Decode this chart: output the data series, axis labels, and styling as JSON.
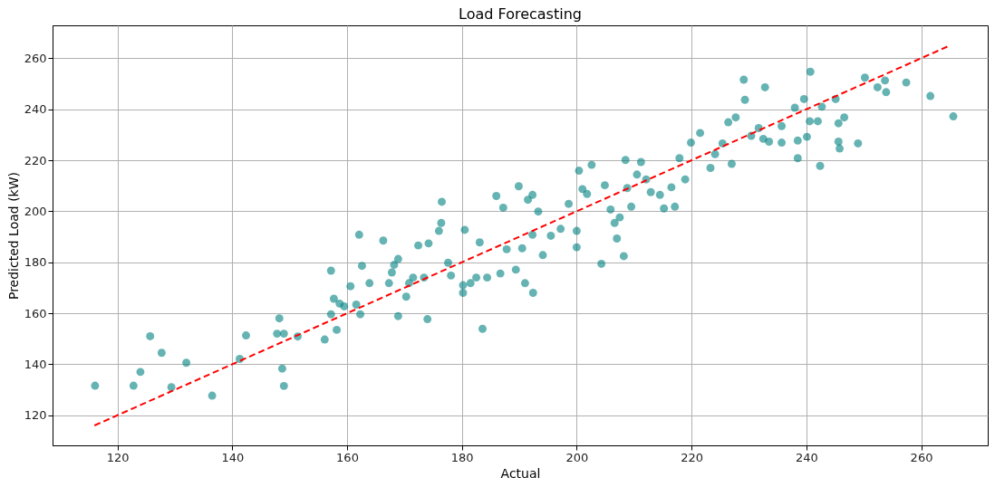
{
  "chart_data": {
    "type": "scatter",
    "title": "Load Forecasting",
    "xlabel": "Actual",
    "ylabel": "Predicted Load (kW)",
    "xlim": [
      108.7,
      271.6
    ],
    "ylim": [
      108.2,
      272.9
    ],
    "xticks": [
      120,
      140,
      160,
      180,
      200,
      220,
      240,
      260
    ],
    "yticks": [
      120,
      140,
      160,
      180,
      200,
      220,
      240,
      260
    ],
    "grid": true,
    "series": [
      {
        "type": "scatter",
        "color": "#008080",
        "marker": "circle",
        "x": [
          116.1,
          122.8,
          124.0,
          125.7,
          127.7,
          129.4,
          132.0,
          136.5,
          141.3,
          142.4,
          148.2,
          147.8,
          149.0,
          148.7,
          149.0,
          151.4,
          156.1,
          157.2,
          157.7,
          157.2,
          158.2,
          158.7,
          159.5,
          160.6,
          161.6,
          162.1,
          162.6,
          162.3,
          163.9,
          166.3,
          167.3,
          167.8,
          168.2,
          168.9,
          168.9,
          170.3,
          170.8,
          171.5,
          172.4,
          174.2,
          174.0,
          173.4,
          176.0,
          176.4,
          176.5,
          177.6,
          178.1,
          180.2,
          180.2,
          180.5,
          181.5,
          182.5,
          183.1,
          183.6,
          184.4,
          186.0,
          187.2,
          186.7,
          187.8,
          189.4,
          189.9,
          190.5,
          191.0,
          191.5,
          192.3,
          192.3,
          192.4,
          193.3,
          194.1,
          195.5,
          197.2,
          198.6,
          200.0,
          200.0,
          200.4,
          201.0,
          201.8,
          202.6,
          204.3,
          204.9,
          205.9,
          206.6,
          207.0,
          207.5,
          208.2,
          208.5,
          208.8,
          209.5,
          210.5,
          211.2,
          212.1,
          212.9,
          214.5,
          215.2,
          216.5,
          217.1,
          217.9,
          218.9,
          219.9,
          221.5,
          223.3,
          224.1,
          225.4,
          226.4,
          227.0,
          227.7,
          229.1,
          229.3,
          230.4,
          231.7,
          232.5,
          232.8,
          233.5,
          235.7,
          235.7,
          238.0,
          238.5,
          238.5,
          239.6,
          240.1,
          240.7,
          240.6,
          242.0,
          242.4,
          242.7,
          245.1,
          245.6,
          245.6,
          245.8,
          246.6,
          249.0,
          250.2,
          252.4,
          253.7,
          253.9,
          257.4,
          261.6,
          265.6
        ],
        "values": [
          131.6,
          131.6,
          137.0,
          151.0,
          144.5,
          131.0,
          140.6,
          127.7,
          142.1,
          151.3,
          158.0,
          152.0,
          152.0,
          138.3,
          131.5,
          150.9,
          149.7,
          176.7,
          165.7,
          159.6,
          153.5,
          163.8,
          162.7,
          170.6,
          163.4,
          190.8,
          178.6,
          159.6,
          171.8,
          188.5,
          171.8,
          176.0,
          179.0,
          181.3,
          158.9,
          166.5,
          171.8,
          174.0,
          186.6,
          187.4,
          157.7,
          174.0,
          192.3,
          195.4,
          203.7,
          179.8,
          174.8,
          171.0,
          168.0,
          192.7,
          171.8,
          174.0,
          187.8,
          153.9,
          174.0,
          206.0,
          201.4,
          175.6,
          185.1,
          177.1,
          209.8,
          185.5,
          171.8,
          204.5,
          206.4,
          190.8,
          168.0,
          199.9,
          182.8,
          190.4,
          193.1,
          202.9,
          192.3,
          185.9,
          215.9,
          208.7,
          206.8,
          218.2,
          179.4,
          210.2,
          200.7,
          195.4,
          189.3,
          197.6,
          182.4,
          220.1,
          209.1,
          201.8,
          214.4,
          219.3,
          212.5,
          207.5,
          206.4,
          201.1,
          209.4,
          201.8,
          220.8,
          212.5,
          226.9,
          230.7,
          217.0,
          222.4,
          226.6,
          234.9,
          218.6,
          236.8,
          251.6,
          243.7,
          229.6,
          232.6,
          228.4,
          248.6,
          227.3,
          226.9,
          233.4,
          240.6,
          227.7,
          220.8,
          244.0,
          229.2,
          254.7,
          235.3,
          235.3,
          217.8,
          241.0,
          244.0,
          234.5,
          227.3,
          224.6,
          236.8,
          226.6,
          252.4,
          248.6,
          251.3,
          246.7,
          250.5,
          245.2,
          237.2
        ]
      },
      {
        "type": "line",
        "color": "#ff0000",
        "line_style": "dashed",
        "marker": "none",
        "x": [
          116,
          265
        ],
        "values": [
          116,
          265
        ]
      }
    ]
  }
}
